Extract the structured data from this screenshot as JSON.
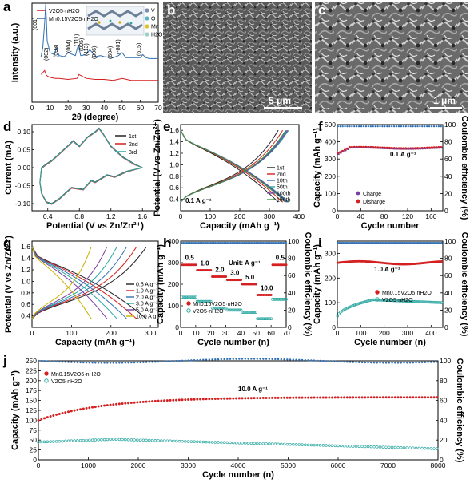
{
  "panels": {
    "a": "a",
    "b": "b",
    "c": "c",
    "d": "d",
    "e": "e",
    "f": "f",
    "g": "g",
    "h": "h",
    "i": "i",
    "j": "j"
  },
  "sem": {
    "b_scale": "5 μm",
    "c_scale": "1 μm"
  },
  "inset_legend": [
    "V",
    "O",
    "Mn",
    "H2O"
  ],
  "colors": {
    "red": "#d42020",
    "blue": "#2f6fb3",
    "cyan": "#2aa7a0"
  },
  "chart_data": [
    {
      "panel": "a",
      "type": "line",
      "xlabel": "2θ (degree)",
      "ylabel": "Intensity (a.u.)",
      "xlim": [
        0,
        70
      ],
      "xticks": [
        0,
        10,
        20,
        30,
        40,
        50,
        60,
        70
      ],
      "series": [
        {
          "name": "V2O5·nH2O",
          "color": "#d42020",
          "x": [
            5,
            7,
            8,
            10,
            13,
            15,
            20,
            25,
            26,
            30,
            35,
            40,
            45,
            50,
            55,
            60,
            65,
            70
          ],
          "y": [
            0.28,
            0.32,
            0.27,
            0.25,
            0.24,
            0.24,
            0.23,
            0.24,
            0.28,
            0.24,
            0.23,
            0.23,
            0.22,
            0.24,
            0.22,
            0.22,
            0.22,
            0.22
          ]
        },
        {
          "name": "Mn0.15V2O5·nH2O",
          "color": "#2f6fb3",
          "x": [
            5,
            6,
            7,
            7.6,
            8.4,
            10,
            12.5,
            13.5,
            15,
            18,
            20,
            24,
            25.7,
            27,
            30,
            32,
            33.5,
            35,
            38,
            40,
            45,
            48,
            50,
            52,
            55,
            60,
            61.5,
            63,
            65,
            70
          ],
          "y": [
            0.46,
            0.55,
            0.8,
            1.0,
            0.62,
            0.5,
            0.48,
            0.55,
            0.47,
            0.46,
            0.5,
            0.47,
            0.58,
            0.47,
            0.48,
            0.53,
            0.5,
            0.46,
            0.47,
            0.46,
            0.45,
            0.47,
            0.5,
            0.45,
            0.45,
            0.45,
            0.48,
            0.45,
            0.44,
            0.44
          ]
        }
      ],
      "annotations": [
        "(001)",
        "(002)",
        "(003)",
        "(004)",
        "(111)",
        "(005)",
        "(113)",
        "(006)",
        "(604)",
        "(-801)",
        "(615)"
      ]
    },
    {
      "panel": "d",
      "type": "line",
      "xlabel": "Potential (V vs Zn/Zn²⁺)",
      "ylabel": "Current (mA)",
      "xlim": [
        0.2,
        1.8
      ],
      "ylim": [
        -0.12,
        0.12
      ],
      "xticks": [
        0.4,
        0.8,
        1.2,
        1.6
      ],
      "yticks": [
        -0.1,
        -0.05,
        0.0,
        0.05,
        0.1
      ],
      "series": [
        {
          "name": "1st",
          "color": "#222222",
          "x": [
            1.6,
            1.4,
            1.25,
            1.15,
            1.0,
            0.95,
            0.85,
            0.7,
            0.55,
            0.45,
            0.38,
            0.32,
            0.3,
            0.32,
            0.38,
            0.45,
            0.55,
            0.65,
            0.72,
            0.8,
            0.9,
            1.0,
            1.05,
            1.1,
            1.2,
            1.35,
            1.5,
            1.6
          ],
          "y": [
            0.0,
            -0.01,
            -0.025,
            -0.02,
            -0.04,
            -0.035,
            -0.06,
            -0.055,
            -0.085,
            -0.1,
            -0.095,
            -0.07,
            -0.04,
            0.0,
            0.01,
            0.02,
            0.04,
            0.06,
            0.075,
            0.06,
            0.085,
            0.1,
            0.11,
            0.095,
            0.06,
            0.03,
            0.01,
            0.0
          ]
        },
        {
          "name": "2nd",
          "color": "#d42020",
          "x": [
            1.6,
            1.4,
            1.25,
            1.15,
            1.0,
            0.95,
            0.85,
            0.7,
            0.55,
            0.45,
            0.38,
            0.32,
            0.3,
            0.32,
            0.38,
            0.45,
            0.55,
            0.65,
            0.72,
            0.8,
            0.9,
            1.0,
            1.05,
            1.1,
            1.2,
            1.35,
            1.5,
            1.6
          ],
          "y": [
            0.0,
            -0.012,
            -0.027,
            -0.022,
            -0.042,
            -0.037,
            -0.062,
            -0.057,
            -0.087,
            -0.102,
            -0.097,
            -0.072,
            -0.042,
            -0.002,
            0.008,
            0.018,
            0.038,
            0.058,
            0.073,
            0.058,
            0.083,
            0.098,
            0.108,
            0.093,
            0.058,
            0.028,
            0.008,
            0.0
          ]
        },
        {
          "name": "3rd",
          "color": "#2aa7a0",
          "x": [
            1.6,
            1.4,
            1.25,
            1.15,
            1.0,
            0.95,
            0.85,
            0.7,
            0.55,
            0.45,
            0.38,
            0.32,
            0.3,
            0.32,
            0.38,
            0.45,
            0.55,
            0.65,
            0.72,
            0.8,
            0.9,
            1.0,
            1.05,
            1.1,
            1.2,
            1.35,
            1.5,
            1.6
          ],
          "y": [
            0.0,
            -0.011,
            -0.026,
            -0.021,
            -0.041,
            -0.036,
            -0.061,
            -0.056,
            -0.086,
            -0.101,
            -0.096,
            -0.071,
            -0.041,
            -0.001,
            0.009,
            0.019,
            0.039,
            0.059,
            0.074,
            0.059,
            0.084,
            0.099,
            0.109,
            0.094,
            0.059,
            0.029,
            0.009,
            0.0
          ]
        }
      ]
    },
    {
      "panel": "e",
      "type": "line",
      "xlabel": "Capacity (mAh g⁻¹)",
      "ylabel": "Potential (V vs Zn/Zn²⁺)",
      "xlim": [
        0,
        400
      ],
      "ylim": [
        0.2,
        1.7
      ],
      "xticks": [
        0,
        100,
        200,
        300,
        400
      ],
      "yticks": [
        0.4,
        0.6,
        0.8,
        1.0,
        1.2,
        1.4,
        1.6
      ],
      "note": "0.1 A g⁻¹",
      "series": [
        {
          "name": "1st",
          "color": "#222222",
          "cap": 330
        },
        {
          "name": "2nd",
          "color": "#d42020",
          "cap": 345
        },
        {
          "name": "10th",
          "color": "#2f6fb3",
          "cap": 358
        },
        {
          "name": "50th",
          "color": "#2aa7a0",
          "cap": 365
        },
        {
          "name": "100th",
          "color": "#7b3fa0",
          "cap": 362
        },
        {
          "name": "150th",
          "color": "#3a9a3a",
          "cap": 355
        }
      ]
    },
    {
      "panel": "f",
      "type": "scatter",
      "xlabel": "Cycle number",
      "ylabel": "Capacity (mAh g⁻¹)",
      "y2label": "Coulombic efficiency (%)",
      "xlim": [
        0,
        180
      ],
      "ylim": [
        0,
        500
      ],
      "y2lim": [
        0,
        100
      ],
      "xticks": [
        0,
        40,
        80,
        120,
        160
      ],
      "yticks": [
        0,
        100,
        200,
        300,
        400,
        500
      ],
      "y2ticks": [
        0,
        20,
        40,
        60,
        80,
        100
      ],
      "note": "0.1 A g⁻¹",
      "series": [
        {
          "name": "Charge",
          "color": "#7b3fa0",
          "start": 330,
          "level": 365
        },
        {
          "name": "Disharge",
          "color": "#d42020",
          "start": 340,
          "level": 365
        },
        {
          "name": "CE",
          "color": "#2f6fb3",
          "level": 98
        }
      ]
    },
    {
      "panel": "g",
      "type": "line",
      "xlabel": "Capacity (mAh g⁻¹)",
      "ylabel": "Potential (V vs Zn/Zn²⁺)",
      "xlim": [
        0,
        320
      ],
      "ylim": [
        0.2,
        1.7
      ],
      "xticks": [
        0,
        100,
        200,
        300
      ],
      "yticks": [
        0.4,
        0.6,
        0.8,
        1.0,
        1.2,
        1.4,
        1.6
      ],
      "series": [
        {
          "name": "0.5 A g⁻¹",
          "color": "#222222",
          "cap": 290
        },
        {
          "name": "1.0 A g⁻¹",
          "color": "#d42020",
          "cap": 265
        },
        {
          "name": "2.0 A g⁻¹",
          "color": "#2f6fb3",
          "cap": 240
        },
        {
          "name": "3.0 A g⁻¹",
          "color": "#2aa7a0",
          "cap": 215
        },
        {
          "name": "5.0 A g⁻¹",
          "color": "#7b3fa0",
          "cap": 190
        },
        {
          "name": "10.0 A g⁻¹",
          "color": "#c6b200",
          "cap": 150
        }
      ]
    },
    {
      "panel": "h",
      "type": "scatter",
      "xlabel": "Cycle number (n)",
      "ylabel": "Capacity (mAh g⁻¹)",
      "y2label": "Coulombic efficiency (%)",
      "xlim": [
        0,
        70
      ],
      "ylim": [
        0,
        400
      ],
      "y2lim": [
        0,
        100
      ],
      "xticks": [
        0,
        10,
        20,
        30,
        40,
        50,
        60,
        70
      ],
      "yticks": [
        0,
        100,
        200,
        300,
        400
      ],
      "y2ticks": [
        0,
        20,
        40,
        60,
        80,
        100
      ],
      "unit_note": "Unit: A g⁻¹",
      "rates": [
        "0.5",
        "1.0",
        "2.0",
        "3.0",
        "5.0",
        "10.0",
        "0.5"
      ],
      "series": [
        {
          "name": "Mn0.15V2O5·nH2O",
          "color": "#d42020",
          "levels": [
            290,
            265,
            235,
            220,
            200,
            150,
            290
          ]
        },
        {
          "name": "V2O5·nH2O",
          "color": "#2aa7a0",
          "levels": [
            140,
            120,
            90,
            80,
            70,
            40,
            130
          ]
        },
        {
          "name": "CE",
          "color": "#2f6fb3",
          "level": 98
        }
      ]
    },
    {
      "panel": "i",
      "type": "scatter",
      "xlabel": "Cycle number (n)",
      "ylabel": "Capacity (mAh g⁻¹)",
      "y2label": "Coulombic efficiency (%)",
      "xlim": [
        0,
        450
      ],
      "ylim": [
        0,
        350
      ],
      "y2lim": [
        0,
        100
      ],
      "xticks": [
        0,
        100,
        200,
        300,
        400
      ],
      "yticks": [
        0,
        100,
        200,
        300
      ],
      "y2ticks": [
        0,
        20,
        40,
        60,
        80,
        100
      ],
      "note": "1.0 A g⁻¹",
      "series": [
        {
          "name": "Mn0.15V2O5·nH2O",
          "color": "#d42020",
          "level": 262
        },
        {
          "name": "V2O5·nH2O",
          "color": "#2aa7a0",
          "start": 40,
          "peak": 112,
          "end": 100
        },
        {
          "name": "CE",
          "color": "#2f6fb3",
          "level": 98
        }
      ]
    },
    {
      "panel": "j",
      "type": "scatter",
      "xlabel": "Cycle number (n)",
      "ylabel": "Capacity (mAh g⁻¹)",
      "y2label": "Coulombic efficiency (%)",
      "xlim": [
        0,
        8000
      ],
      "ylim": [
        0,
        250
      ],
      "y2lim": [
        0,
        100
      ],
      "xticks": [
        0,
        1000,
        2000,
        3000,
        4000,
        5000,
        6000,
        7000,
        8000
      ],
      "yticks": [
        0,
        25,
        50,
        75,
        100,
        125,
        150,
        175,
        200,
        225,
        250
      ],
      "y2ticks": [
        0,
        20,
        40,
        60,
        80,
        100
      ],
      "note": "10.0 A g⁻¹",
      "series": [
        {
          "name": "Mn0.15V2O5·nH2O",
          "color": "#d42020",
          "start": 100,
          "level": 158
        },
        {
          "name": "V2O5·nH2O",
          "color": "#2aa7a0",
          "start": 45,
          "peak": 52,
          "end": 28
        },
        {
          "name": "CE",
          "color": "#2f6fb3",
          "level": 100
        }
      ]
    }
  ]
}
